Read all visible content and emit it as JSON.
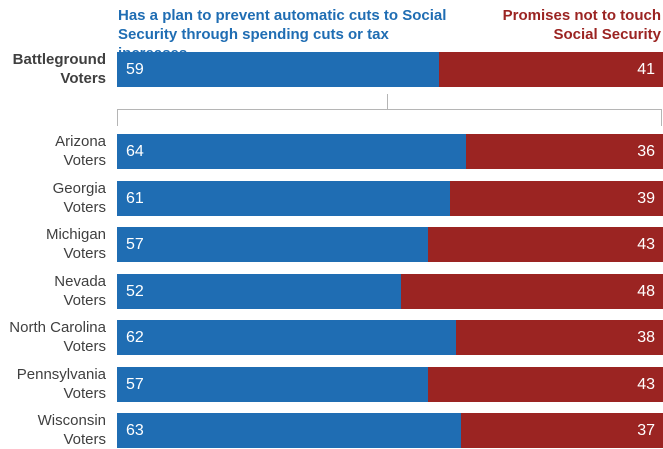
{
  "legend": {
    "left_label": "Has a plan to prevent automatic cuts to Social Security through spending cuts or tax increases",
    "right_label": "Promises not to touch Social Security"
  },
  "colors": {
    "plan": "#1f6db3",
    "promise": "#9b2422"
  },
  "chart_data": {
    "type": "bar",
    "stacked": true,
    "orientation": "horizontal",
    "categories": [
      "Battleground Voters",
      "Arizona Voters",
      "Georgia Voters",
      "Michigan Voters",
      "Nevada Voters",
      "North Carolina Voters",
      "Pennsylvania Voters",
      "Wisconsin Voters"
    ],
    "series": [
      {
        "name": "Has a plan to prevent automatic cuts to Social Security through spending cuts or tax increases",
        "values": [
          59,
          64,
          61,
          57,
          52,
          62,
          57,
          63
        ]
      },
      {
        "name": "Promises not to touch Social Security",
        "values": [
          41,
          36,
          39,
          43,
          48,
          38,
          43,
          37
        ]
      }
    ],
    "rows": [
      {
        "line1": "Battleground",
        "line2": "Voters"
      },
      {
        "line1": "Arizona",
        "line2": "Voters"
      },
      {
        "line1": "Georgia",
        "line2": "Voters"
      },
      {
        "line1": "Michigan",
        "line2": "Voters"
      },
      {
        "line1": "Nevada",
        "line2": "Voters"
      },
      {
        "line1": "North Carolina",
        "line2": "Voters"
      },
      {
        "line1": "Pennsylvania",
        "line2": "Voters"
      },
      {
        "line1": "Wisconsin",
        "line2": "Voters"
      }
    ]
  }
}
